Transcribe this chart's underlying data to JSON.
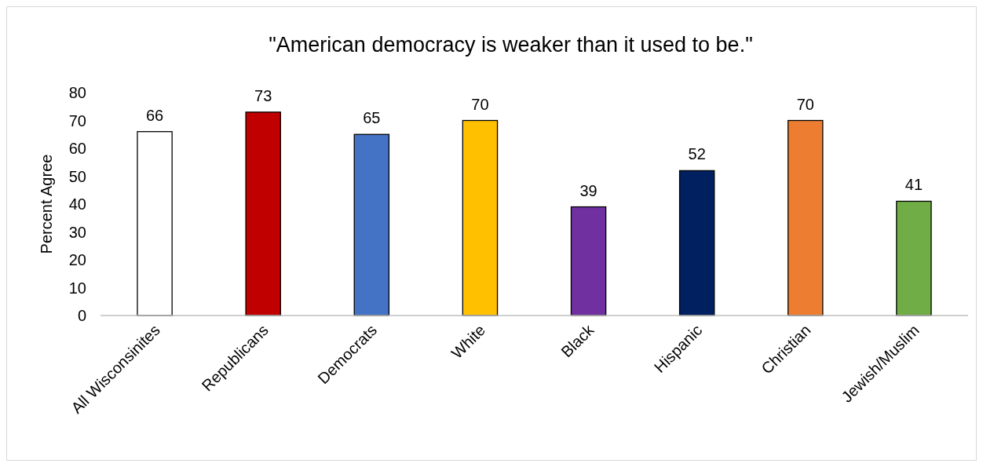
{
  "chart_data": {
    "type": "bar",
    "title": "\"American democracy is weaker than it used to be.\"",
    "ylabel": "Percent Agree",
    "categories": [
      "All Wisconsinites",
      "Republicans",
      "Democrats",
      "White",
      "Black",
      "Hispanic",
      "Christian",
      "Jewish/Muslim"
    ],
    "values": [
      66,
      73,
      65,
      70,
      39,
      52,
      70,
      41
    ],
    "colors": [
      "#ffffff",
      "#c00000",
      "#4472c4",
      "#ffc000",
      "#7030a0",
      "#002060",
      "#ed7d31",
      "#70ad47"
    ],
    "ylim": [
      0,
      80
    ],
    "yticks": [
      0,
      10,
      20,
      30,
      40,
      50,
      60,
      70,
      80
    ],
    "data_labels": true,
    "grid": false
  }
}
